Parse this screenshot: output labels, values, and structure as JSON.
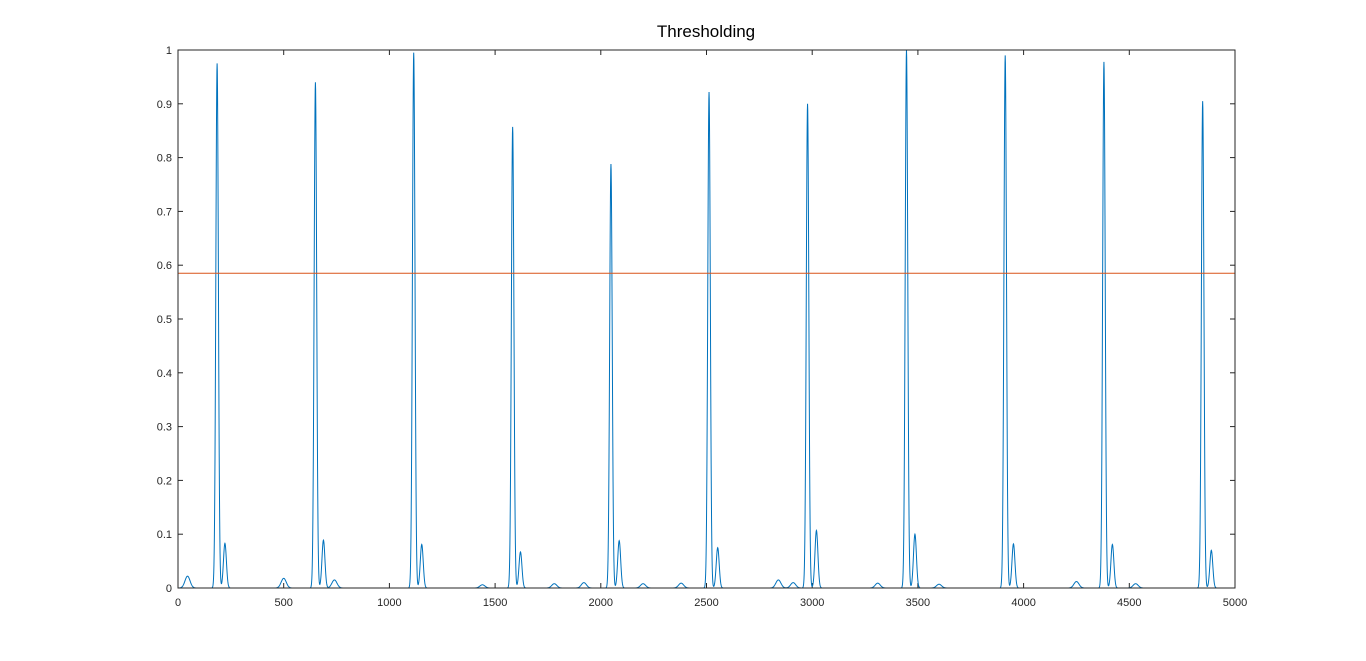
{
  "chart_data": {
    "type": "line",
    "title": "Thresholding",
    "xlabel": "",
    "ylabel": "",
    "xlim": [
      0,
      5000
    ],
    "ylim": [
      0,
      1
    ],
    "x_ticks": [
      "0",
      "500",
      "1000",
      "1500",
      "2000",
      "2500",
      "3000",
      "3500",
      "4000",
      "4500",
      "5000"
    ],
    "y_ticks": [
      "0",
      "0.1",
      "0.2",
      "0.3",
      "0.4",
      "0.5",
      "0.6",
      "0.7",
      "0.8",
      "0.9",
      "1"
    ],
    "grid": false,
    "legend": "none",
    "series": [
      {
        "color": "#0072BD",
        "peaks": [
          {
            "x": 185,
            "y": 0.975
          },
          {
            "x": 650,
            "y": 0.94
          },
          {
            "x": 1115,
            "y": 0.995
          },
          {
            "x": 1583,
            "y": 0.857
          },
          {
            "x": 2048,
            "y": 0.788
          },
          {
            "x": 2512,
            "y": 0.922
          },
          {
            "x": 2978,
            "y": 0.9
          },
          {
            "x": 3446,
            "y": 1.0
          },
          {
            "x": 3913,
            "y": 0.99
          },
          {
            "x": 4380,
            "y": 0.978
          },
          {
            "x": 4847,
            "y": 0.905
          }
        ],
        "secondary_peaks": [
          {
            "x": 222,
            "y": 0.083
          },
          {
            "x": 688,
            "y": 0.089
          },
          {
            "x": 1153,
            "y": 0.081
          },
          {
            "x": 1620,
            "y": 0.067
          },
          {
            "x": 2087,
            "y": 0.088
          },
          {
            "x": 2553,
            "y": 0.075
          },
          {
            "x": 3020,
            "y": 0.107
          },
          {
            "x": 3486,
            "y": 0.1
          },
          {
            "x": 3952,
            "y": 0.082
          },
          {
            "x": 4420,
            "y": 0.081
          },
          {
            "x": 4888,
            "y": 0.07
          }
        ],
        "small_bumps": [
          {
            "x": 45,
            "y": 0.022
          },
          {
            "x": 500,
            "y": 0.018
          },
          {
            "x": 740,
            "y": 0.015
          },
          {
            "x": 1440,
            "y": 0.006
          },
          {
            "x": 1780,
            "y": 0.008
          },
          {
            "x": 1920,
            "y": 0.01
          },
          {
            "x": 2200,
            "y": 0.008
          },
          {
            "x": 2380,
            "y": 0.009
          },
          {
            "x": 2840,
            "y": 0.015
          },
          {
            "x": 2910,
            "y": 0.01
          },
          {
            "x": 3310,
            "y": 0.009
          },
          {
            "x": 3600,
            "y": 0.007
          },
          {
            "x": 4250,
            "y": 0.012
          },
          {
            "x": 4530,
            "y": 0.008
          }
        ]
      },
      {
        "color": "#D95319",
        "x": [
          0,
          5000
        ],
        "y": [
          0.585,
          0.585
        ]
      }
    ]
  }
}
